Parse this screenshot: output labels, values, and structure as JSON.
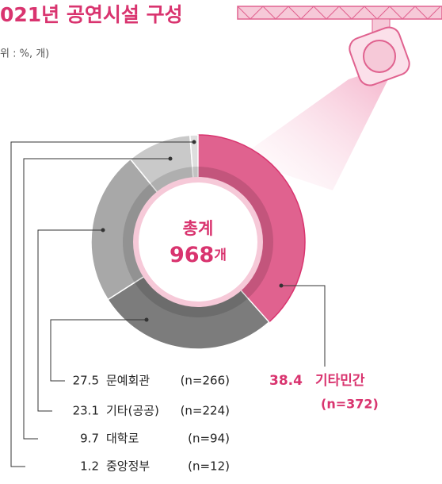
{
  "chart_data": {
    "type": "donut",
    "title": "021년 공연시설 구성",
    "subtitle": "위 : %, 개)",
    "center_title": "총계",
    "total": 968,
    "total_unit": "개",
    "categories": [
      "기타민간",
      "문예회관",
      "기타(공공)",
      "대학로",
      "중앙정부"
    ],
    "values": [
      38.4,
      27.5,
      23.1,
      9.7,
      1.2
    ],
    "count_labels": [
      "(n=372)",
      "(n=266)",
      "(n=224)",
      "(n=94)",
      "(n=12)"
    ],
    "colors": [
      "#e0628f",
      "#7c7c7c",
      "#a8a8a8",
      "#c9c9c9",
      "#dedede"
    ]
  }
}
